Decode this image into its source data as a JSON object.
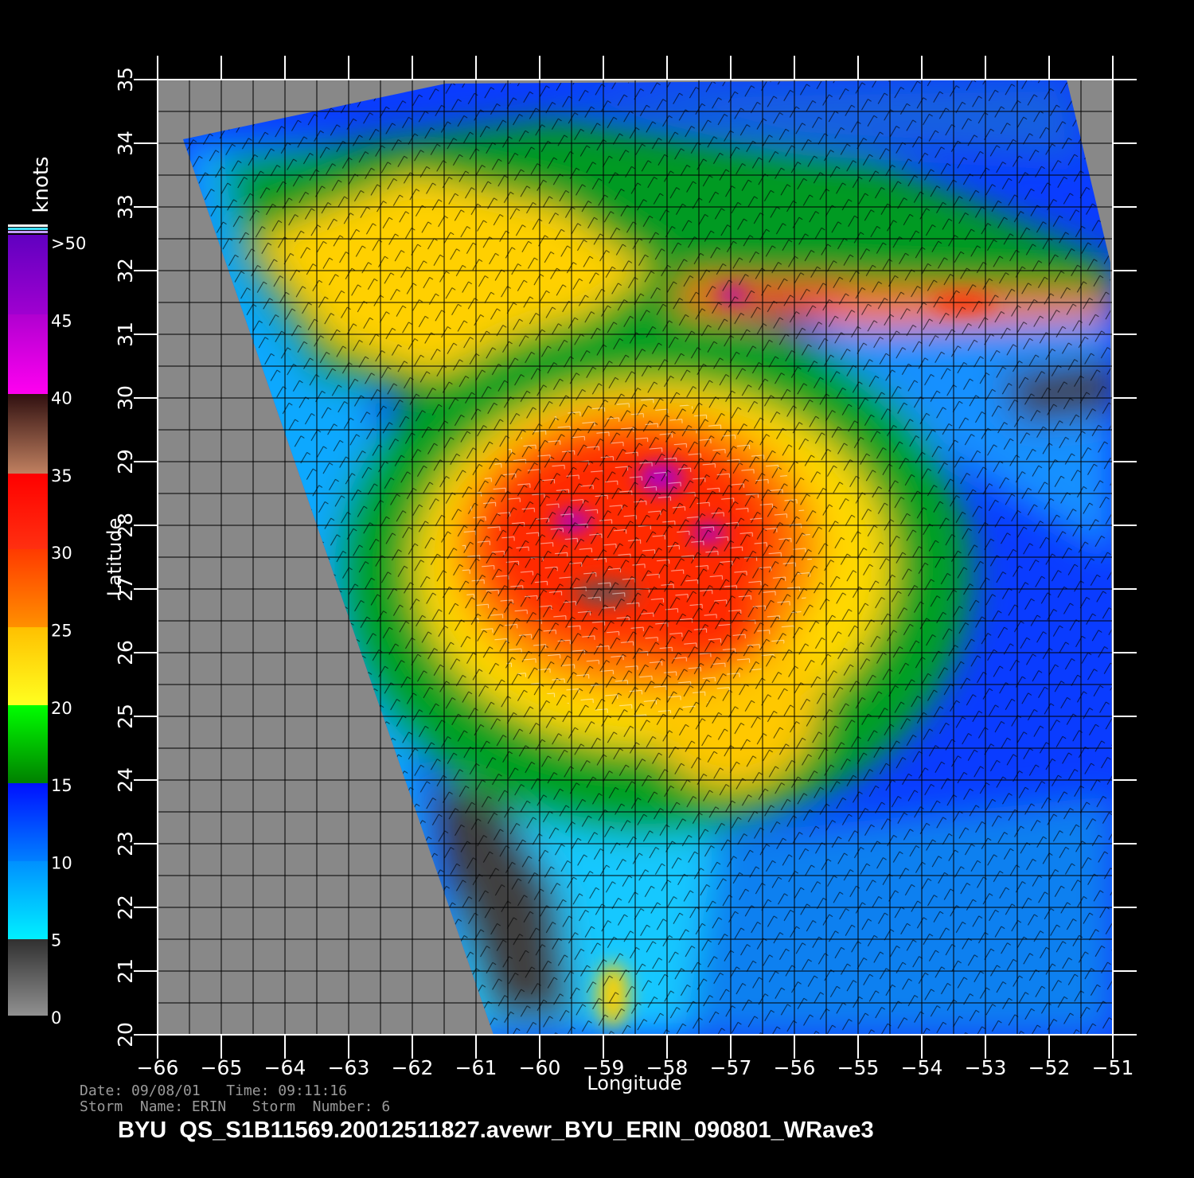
{
  "colorbar": {
    "title": "knots",
    "labels": [
      ">50",
      "45",
      "40",
      "35",
      "30",
      "25",
      "20",
      "15",
      "10",
      "5",
      "0"
    ]
  },
  "axes": {
    "xlabel": "Longitude",
    "ylabel": "Latitude",
    "xticks": [
      "−66",
      "−65",
      "−64",
      "−63",
      "−62",
      "−61",
      "−60",
      "−59",
      "−58",
      "−57",
      "−56",
      "−55",
      "−54",
      "−53",
      "−52",
      "−51"
    ],
    "yticks": [
      "20",
      "21",
      "22",
      "23",
      "24",
      "25",
      "26",
      "27",
      "28",
      "29",
      "30",
      "31",
      "32",
      "33",
      "34",
      "35"
    ],
    "xlim": [
      -66,
      -51
    ],
    "ylim": [
      20,
      35
    ]
  },
  "info": {
    "date_label": "Date:",
    "date": "09/08/01",
    "time_label": "Time:",
    "time": "09:11:16",
    "storm_name_label": "Storm  Name:",
    "storm_name": "ERIN",
    "storm_number_label": "Storm  Number:",
    "storm_number": "6"
  },
  "filename": "BYU  QS_S1B11569.20012511827.avewr_BYU_ERIN_090801_WRave3",
  "palette": {
    "land_gray": "#888888",
    "low": "#3a3a3a",
    "cyan": "#00e8ff",
    "blue": "#0a3cff",
    "green": "#00a000",
    "yellow": "#ffe000",
    "orange": "#ff8000",
    "red": "#ff2000",
    "magenta": "#e000e0",
    "purple": "#7000c0"
  }
}
